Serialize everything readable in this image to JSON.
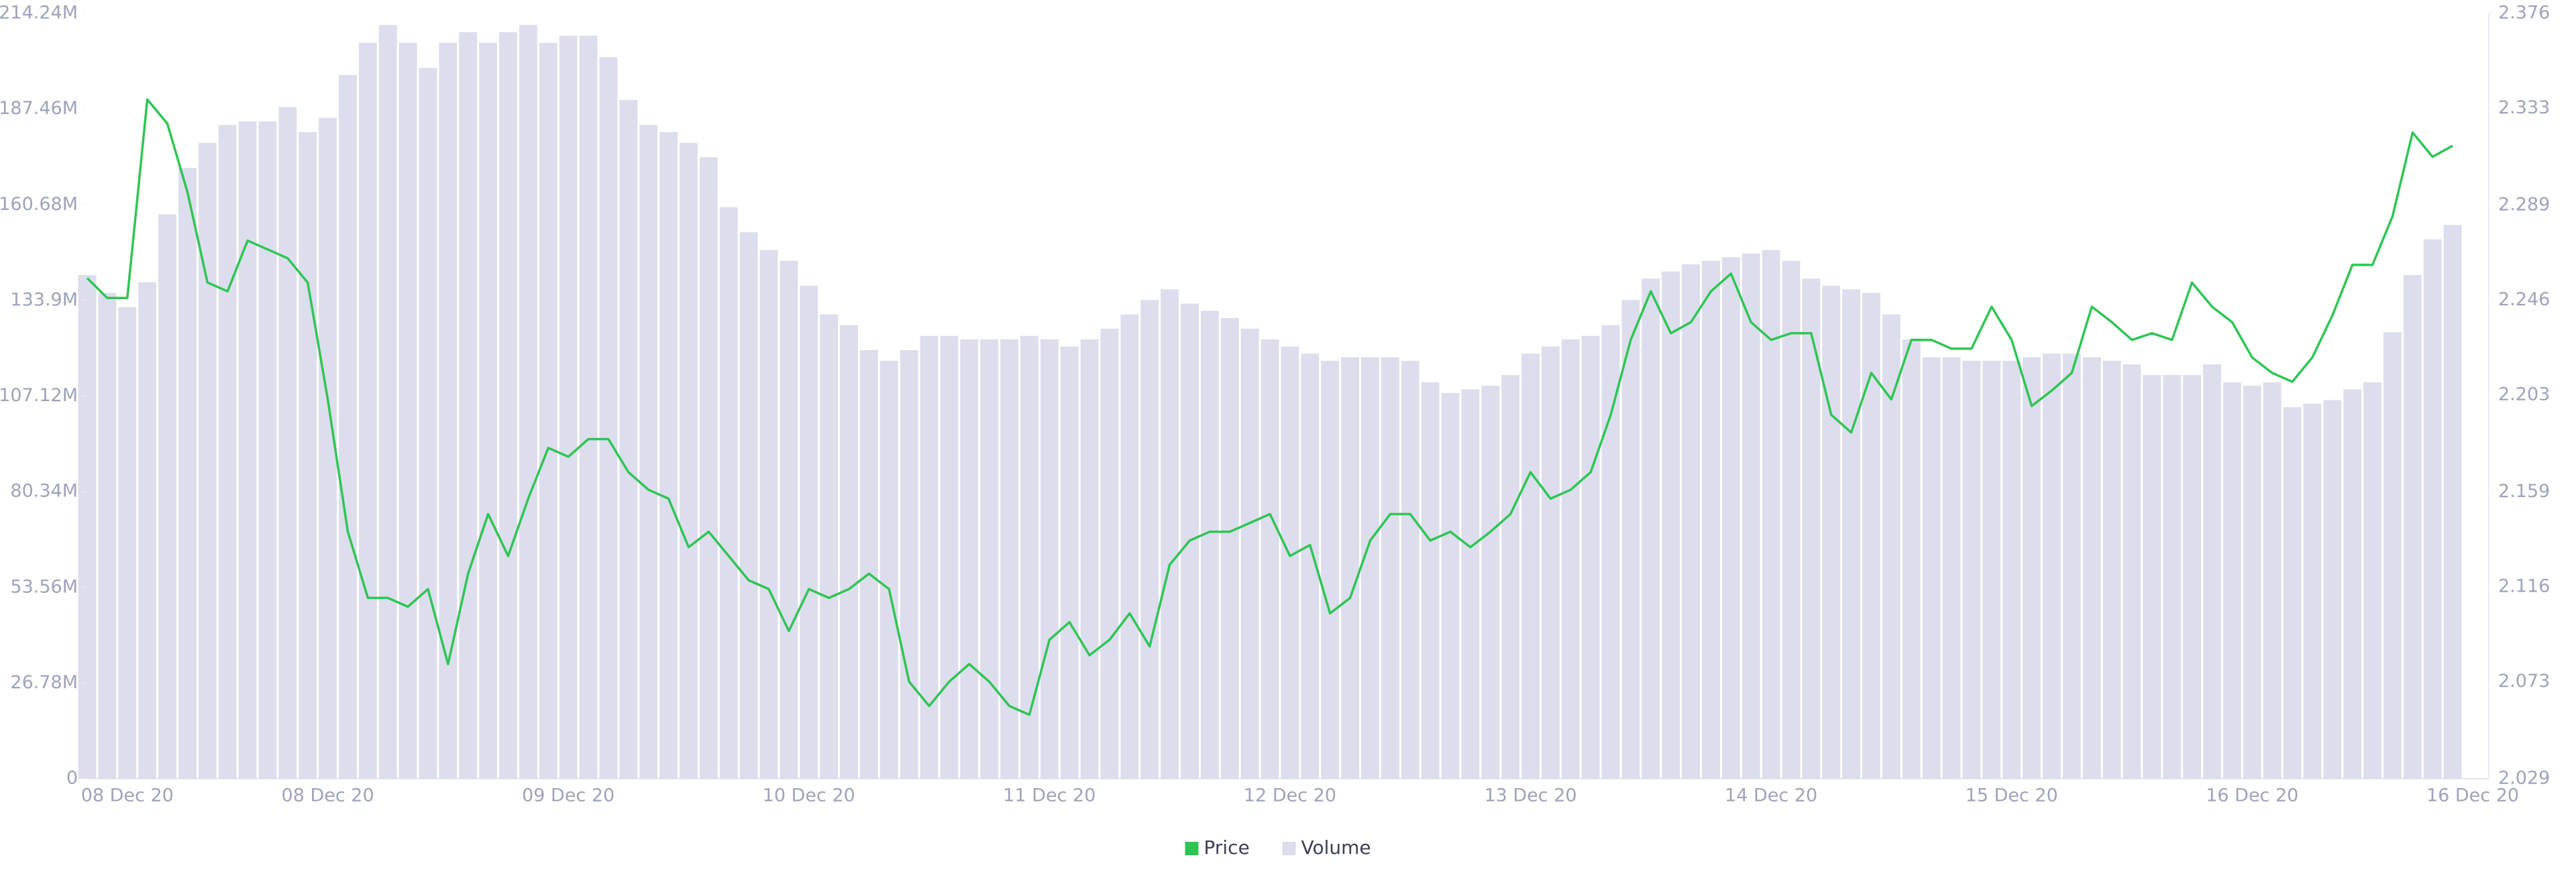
{
  "chart_data": {
    "type": "line",
    "categories": [
      null,
      null,
      "08 Dec 20",
      null,
      null,
      null,
      null,
      null,
      null,
      null,
      null,
      null,
      "08 Dec 20",
      null,
      null,
      null,
      null,
      null,
      null,
      null,
      null,
      null,
      null,
      null,
      "09 Dec 20",
      null,
      null,
      null,
      null,
      null,
      null,
      null,
      null,
      null,
      null,
      null,
      "10 Dec 20",
      null,
      null,
      null,
      null,
      null,
      null,
      null,
      null,
      null,
      null,
      null,
      "11 Dec 20",
      null,
      null,
      null,
      null,
      null,
      null,
      null,
      null,
      null,
      null,
      null,
      "12 Dec 20",
      null,
      null,
      null,
      null,
      null,
      null,
      null,
      null,
      null,
      null,
      null,
      "13 Dec 20",
      null,
      null,
      null,
      null,
      null,
      null,
      null,
      null,
      null,
      null,
      null,
      "14 Dec 20",
      null,
      null,
      null,
      null,
      null,
      null,
      null,
      null,
      null,
      null,
      null,
      "15 Dec 20",
      null,
      null,
      null,
      null,
      null,
      null,
      null,
      null,
      null,
      null,
      null,
      "16 Dec 20",
      null,
      null,
      null,
      null,
      null,
      null,
      null,
      null,
      null,
      null,
      "16 Dec 20"
    ],
    "series": [
      {
        "name": "Price",
        "type": "line",
        "axis": "y2",
        "color": "#2fc554",
        "values": [
          2.256,
          2.247,
          2.247,
          2.337,
          2.326,
          2.295,
          2.254,
          2.25,
          2.273,
          2.269,
          2.265,
          2.254,
          2.201,
          2.141,
          2.111,
          2.111,
          2.107,
          2.115,
          2.081,
          2.122,
          2.149,
          2.13,
          2.156,
          2.179,
          2.175,
          2.183,
          2.183,
          2.168,
          2.16,
          2.156,
          2.134,
          2.141,
          2.13,
          2.119,
          2.115,
          2.096,
          2.115,
          2.111,
          2.115,
          2.122,
          2.115,
          2.073,
          2.062,
          2.073,
          2.081,
          2.073,
          2.062,
          2.058,
          2.092,
          2.1,
          2.085,
          2.092,
          2.104,
          2.089,
          2.126,
          2.137,
          2.141,
          2.141,
          2.145,
          2.149,
          2.13,
          2.135,
          2.104,
          2.111,
          2.137,
          2.149,
          2.149,
          2.137,
          2.141,
          2.134,
          2.141,
          2.149,
          2.168,
          2.156,
          2.16,
          2.168,
          2.194,
          2.228,
          2.25,
          2.231,
          2.236,
          2.25,
          2.258,
          2.236,
          2.228,
          2.231,
          2.231,
          2.194,
          2.186,
          2.213,
          2.201,
          2.228,
          2.228,
          2.224,
          2.224,
          2.243,
          2.228,
          2.198,
          2.205,
          2.213,
          2.243,
          2.236,
          2.228,
          2.231,
          2.228,
          2.254,
          2.243,
          2.236,
          2.22,
          2.213,
          2.209,
          2.22,
          2.239,
          2.262,
          2.262,
          2.284,
          2.322,
          2.311,
          2.316,
          null
        ]
      },
      {
        "name": "Volume",
        "type": "bar",
        "color": "#dcdeed",
        "values": [
          141000000,
          136000000,
          132000000,
          139000000,
          158000000,
          171000000,
          178000000,
          183000000,
          184000000,
          184000000,
          188000000,
          181000000,
          185000000,
          197000000,
          206000000,
          211000000,
          206000000,
          199000000,
          206000000,
          209000000,
          206000000,
          209000000,
          211000000,
          206000000,
          208000000,
          208000000,
          202000000,
          190000000,
          183000000,
          181000000,
          178000000,
          174000000,
          160000000,
          153000000,
          148000000,
          145000000,
          138000000,
          130000000,
          127000000,
          120000000,
          117000000,
          120000000,
          124000000,
          124000000,
          123000000,
          123000000,
          123000000,
          124000000,
          123000000,
          121000000,
          123000000,
          126000000,
          130000000,
          134000000,
          137000000,
          133000000,
          131000000,
          129000000,
          126000000,
          123000000,
          121000000,
          119000000,
          117000000,
          118000000,
          118000000,
          118000000,
          117000000,
          111000000,
          108000000,
          109000000,
          110000000,
          113000000,
          119000000,
          121000000,
          123000000,
          124000000,
          127000000,
          134000000,
          140000000,
          142000000,
          144000000,
          145000000,
          146000000,
          147000000,
          148000000,
          145000000,
          140000000,
          138000000,
          137000000,
          136000000,
          130000000,
          123000000,
          118000000,
          118000000,
          117000000,
          117000000,
          117000000,
          118000000,
          119000000,
          119000000,
          118000000,
          117000000,
          116000000,
          113000000,
          113000000,
          113000000,
          116000000,
          111000000,
          110000000,
          111000000,
          104000000,
          105000000,
          106000000,
          109000000,
          111000000,
          125000000,
          141000000,
          151000000,
          155000000,
          null
        ]
      }
    ],
    "ylim": [
      0,
      214240000
    ],
    "yticks": [
      0,
      {
        "value": 26780000,
        "label": "26.78M"
      },
      {
        "value": 53560000,
        "label": "53.56M"
      },
      {
        "value": 80340000,
        "label": "80.34M"
      },
      {
        "value": 107120000,
        "label": "107.12M"
      },
      {
        "value": 133900000,
        "label": "133.9M"
      },
      {
        "value": 160680000,
        "label": "160.68M"
      },
      {
        "value": 187460000,
        "label": "187.46M"
      },
      {
        "value": 214240000,
        "label": "214.24M"
      }
    ],
    "y2lim": [
      2.029,
      2.376
    ],
    "y2ticks": [
      2.029,
      2.073,
      2.116,
      2.159,
      2.203,
      2.246,
      2.289,
      2.333,
      2.376
    ],
    "legend": "bottom"
  }
}
